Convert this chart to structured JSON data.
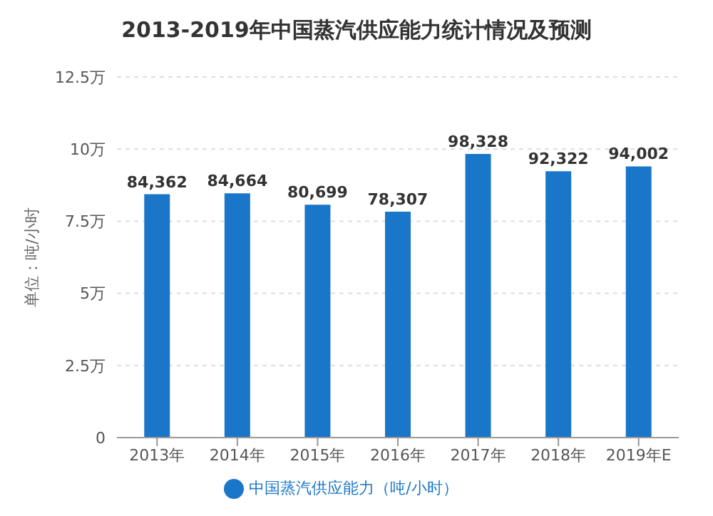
{
  "chart_data": {
    "type": "bar",
    "title": "2013-2019年中国蒸汽供应能力统计情况及预测",
    "ylabel": "单位：吨/小时",
    "categories": [
      "2013年",
      "2014年",
      "2015年",
      "2016年",
      "2017年",
      "2018年",
      "2019年E"
    ],
    "series": [
      {
        "name": "中国蒸汽供应能力（吨/小时）",
        "color": "#1a76c8",
        "values": [
          8.4362,
          8.4664,
          8.0699,
          7.8307,
          9.8328,
          9.2322,
          9.4002
        ]
      }
    ],
    "value_labels": [
      "84,362",
      "84,664",
      "80,699",
      "78,307",
      "98,328",
      "92,322",
      "94,002"
    ],
    "ylim": [
      0,
      12.5
    ],
    "yticks": [
      0,
      {
        "value": 2.5,
        "label": "2.5万"
      },
      {
        "value": 5,
        "label": "5万"
      },
      {
        "value": 7.5,
        "label": "7.5万"
      },
      {
        "value": 10,
        "label": "10万"
      },
      {
        "value": 12.5,
        "label": "12.5万"
      }
    ],
    "grid": "y",
    "legend": "bottom"
  }
}
